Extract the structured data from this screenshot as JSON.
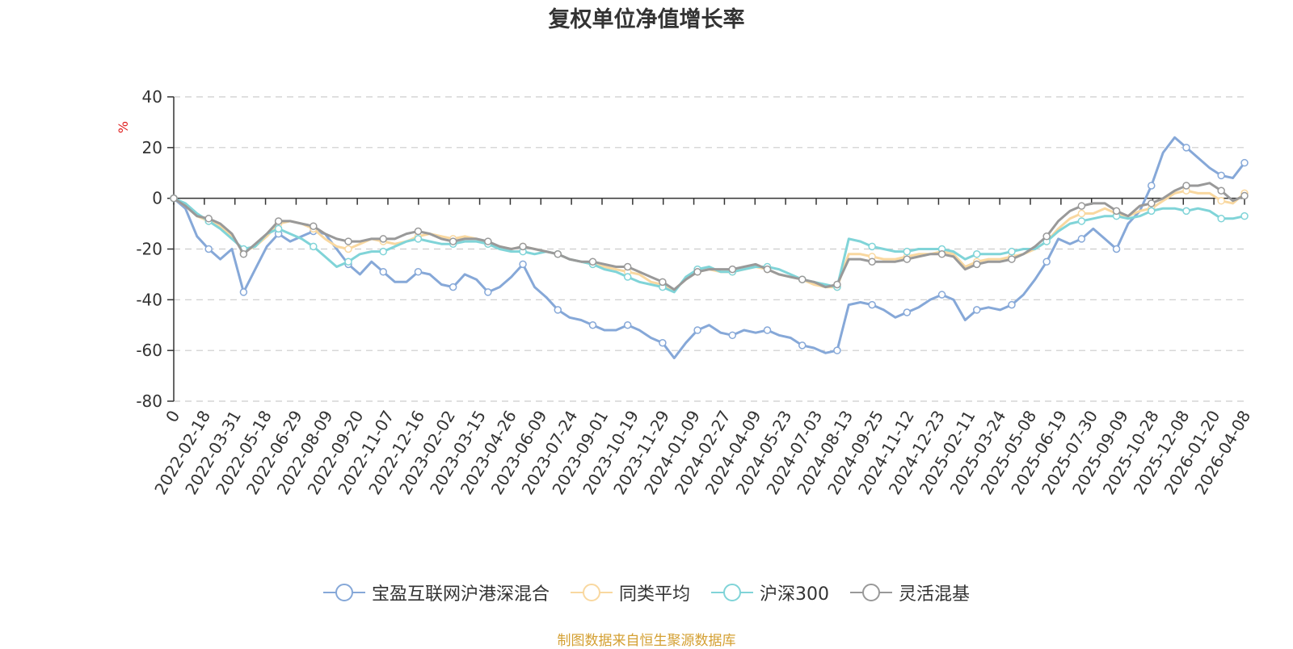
{
  "chart_data": {
    "type": "line",
    "title": "复权单位净值增长率",
    "ylabel": "%",
    "ylim": [
      -80,
      40
    ],
    "yticks": [
      40,
      20,
      0,
      -20,
      -40,
      -60,
      -80
    ],
    "xtick_labels": [
      "0",
      "2022-02-18",
      "2022-03-31",
      "2022-05-18",
      "2022-06-29",
      "2022-08-09",
      "2022-09-20",
      "2022-11-07",
      "2022-12-16",
      "2023-02-02",
      "2023-03-15",
      "2023-04-26",
      "2023-06-09",
      "2023-07-24",
      "2023-09-01",
      "2023-10-19",
      "2023-11-29",
      "2024-01-09",
      "2024-02-27",
      "2024-04-09",
      "2024-05-23",
      "2024-07-03",
      "2024-08-13",
      "2024-09-25",
      "2024-11-12",
      "2024-12-23",
      "2025-02-11",
      "2025-03-24",
      "2025-05-08",
      "2025-06-19",
      "2025-07-30",
      "2025-09-09",
      "2025-10-28",
      "2025-12-08",
      "2026-01-20",
      "2026-04-08"
    ],
    "grid": "horizontal-dashed",
    "legend_position": "bottom",
    "series": [
      {
        "name": "宝盈互联网沪港深混合",
        "color": "#86a8d8",
        "values": [
          0,
          -4,
          -15,
          -20,
          -24,
          -20,
          -37,
          -28,
          -19,
          -14,
          -17,
          -15,
          -13,
          -14,
          -20,
          -26,
          -30,
          -25,
          -29,
          -33,
          -33,
          -29,
          -30,
          -34,
          -35,
          -30,
          -32,
          -37,
          -35,
          -31,
          -26,
          -35,
          -39,
          -44,
          -47,
          -48,
          -50,
          -52,
          -52,
          -50,
          -52,
          -55,
          -57,
          -63,
          -57,
          -52,
          -50,
          -53,
          -54,
          -52,
          -53,
          -52,
          -54,
          -55,
          -58,
          -59,
          -61,
          -60,
          -42,
          -41,
          -42,
          -44,
          -47,
          -45,
          -43,
          -40,
          -38,
          -40,
          -48,
          -44,
          -43,
          -44,
          -42,
          -38,
          -32,
          -25,
          -16,
          -18,
          -16,
          -12,
          -16,
          -20,
          -10,
          -5,
          5,
          18,
          24,
          20,
          16,
          12,
          9,
          8,
          14
        ]
      },
      {
        "name": "同类平均",
        "color": "#f9d8a0",
        "values": [
          0,
          -3,
          -7,
          -9,
          -11,
          -15,
          -21,
          -19,
          -15,
          -10,
          -9,
          -10,
          -12,
          -16,
          -19,
          -20,
          -18,
          -16,
          -17,
          -18,
          -17,
          -15,
          -14,
          -15,
          -16,
          -15,
          -16,
          -18,
          -19,
          -20,
          -19,
          -20,
          -21,
          -22,
          -24,
          -25,
          -26,
          -27,
          -28,
          -29,
          -30,
          -33,
          -34,
          -36,
          -32,
          -29,
          -28,
          -29,
          -29,
          -28,
          -27,
          -28,
          -30,
          -31,
          -32,
          -34,
          -35,
          -35,
          -22,
          -22,
          -23,
          -24,
          -24,
          -23,
          -22,
          -22,
          -21,
          -22,
          -27,
          -25,
          -24,
          -24,
          -23,
          -22,
          -20,
          -17,
          -12,
          -8,
          -6,
          -6,
          -4,
          -6,
          -7,
          -5,
          -4,
          -1,
          2,
          3,
          2,
          2,
          -1,
          -2,
          2
        ]
      },
      {
        "name": "沪深300",
        "color": "#80d4d8",
        "values": [
          0,
          -2,
          -6,
          -9,
          -12,
          -16,
          -20,
          -19,
          -14,
          -12,
          -14,
          -16,
          -19,
          -23,
          -27,
          -25,
          -22,
          -21,
          -21,
          -19,
          -17,
          -16,
          -17,
          -18,
          -18,
          -17,
          -17,
          -18,
          -20,
          -21,
          -21,
          -22,
          -21,
          -22,
          -24,
          -25,
          -26,
          -28,
          -29,
          -31,
          -33,
          -34,
          -35,
          -37,
          -31,
          -28,
          -27,
          -29,
          -29,
          -28,
          -27,
          -27,
          -28,
          -30,
          -32,
          -33,
          -34,
          -35,
          -16,
          -17,
          -19,
          -20,
          -21,
          -21,
          -20,
          -20,
          -20,
          -21,
          -24,
          -22,
          -22,
          -22,
          -21,
          -20,
          -20,
          -17,
          -13,
          -10,
          -9,
          -8,
          -7,
          -7,
          -8,
          -7,
          -5,
          -4,
          -4,
          -5,
          -4,
          -5,
          -8,
          -8,
          -7
        ]
      },
      {
        "name": "灵活混基",
        "color": "#999999",
        "values": [
          0,
          -3,
          -7,
          -8,
          -10,
          -14,
          -22,
          -18,
          -14,
          -9,
          -9,
          -10,
          -11,
          -14,
          -16,
          -17,
          -17,
          -16,
          -16,
          -16,
          -14,
          -13,
          -14,
          -16,
          -17,
          -16,
          -16,
          -17,
          -19,
          -20,
          -19,
          -20,
          -21,
          -22,
          -24,
          -25,
          -25,
          -26,
          -27,
          -27,
          -29,
          -31,
          -33,
          -36,
          -32,
          -29,
          -28,
          -28,
          -28,
          -27,
          -26,
          -28,
          -30,
          -31,
          -32,
          -33,
          -35,
          -34,
          -24,
          -24,
          -25,
          -25,
          -25,
          -24,
          -23,
          -22,
          -22,
          -23,
          -28,
          -26,
          -25,
          -25,
          -24,
          -22,
          -19,
          -15,
          -9,
          -5,
          -3,
          -2,
          -2,
          -5,
          -7,
          -3,
          -2,
          0,
          3,
          5,
          5,
          6,
          3,
          -1,
          1
        ]
      }
    ]
  },
  "legend": {
    "items": [
      {
        "label": "宝盈互联网沪港深混合",
        "color": "#86a8d8"
      },
      {
        "label": "同类平均",
        "color": "#f9d8a0"
      },
      {
        "label": "沪深300",
        "color": "#80d4d8"
      },
      {
        "label": "灵活混基",
        "color": "#999999"
      }
    ]
  },
  "footer": {
    "source": "制图数据来自恒生聚源数据库"
  }
}
